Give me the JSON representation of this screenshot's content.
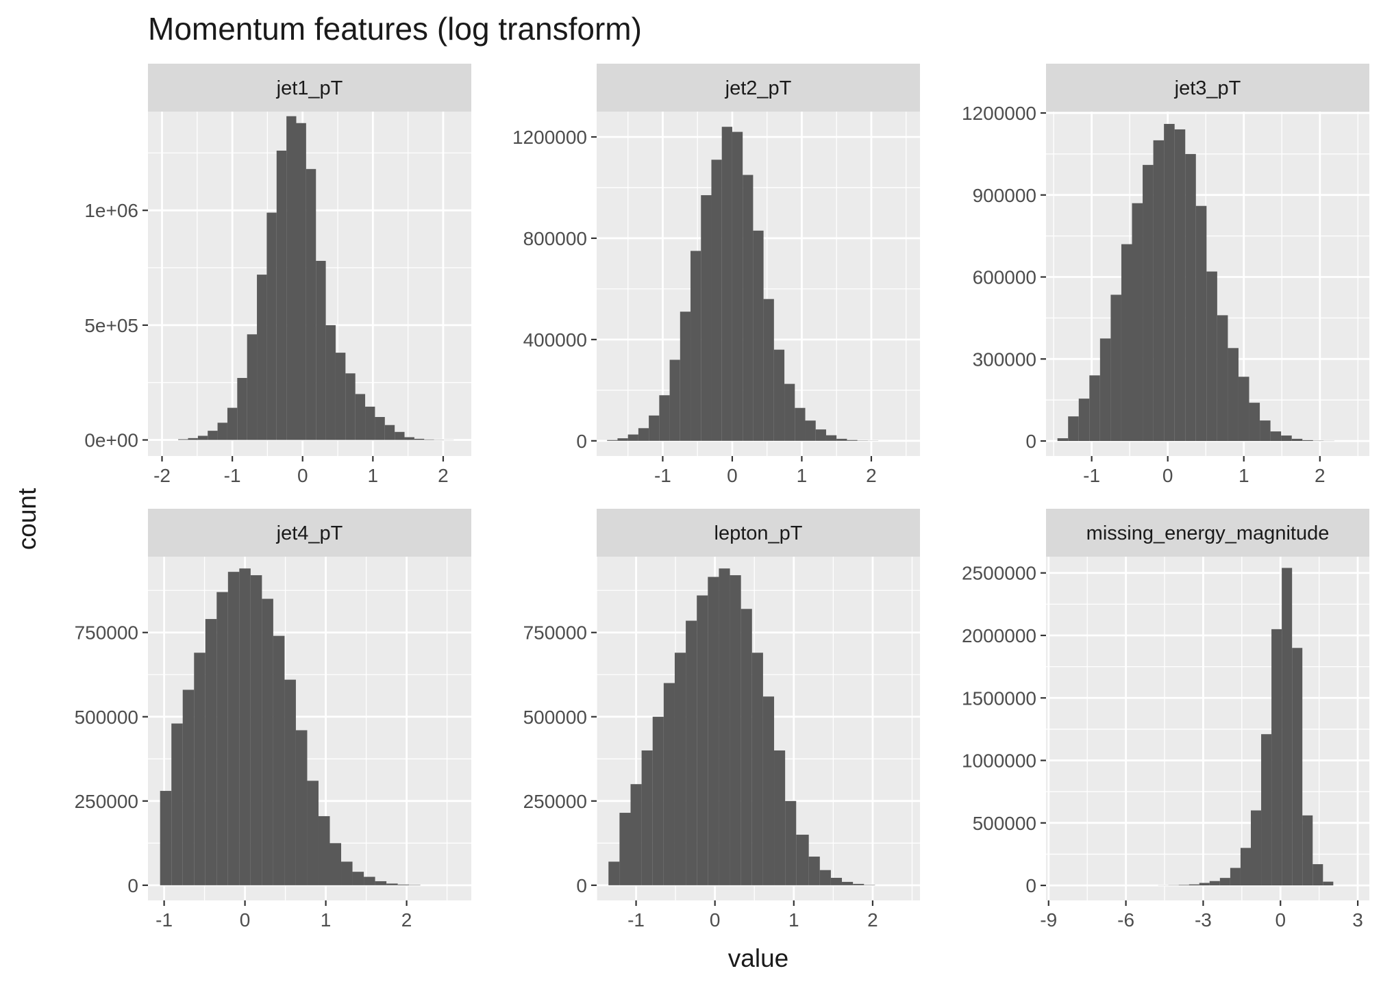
{
  "title": "Momentum features (log transform)",
  "xlabel": "value",
  "ylabel": "count",
  "colors": {
    "panel_bg": "#ebebeb",
    "strip_bg": "#d9d9d9",
    "grid": "#ffffff",
    "bar": "#595959",
    "tick": "#333333"
  },
  "chart_data": [
    {
      "type": "bar",
      "panel": "jet1_pT",
      "xlim": [
        -2.2,
        2.4
      ],
      "ylim": [
        -70000,
        1430000
      ],
      "xticks": [
        -2,
        -1,
        0,
        1,
        2
      ],
      "yticks": [
        0,
        500000,
        1000000
      ],
      "ytick_labels": [
        "0e+00",
        "5e+05",
        "1e+06"
      ],
      "bin_edges": [
        -1.77,
        -1.63,
        -1.49,
        -1.35,
        -1.21,
        -1.07,
        -0.93,
        -0.79,
        -0.65,
        -0.51,
        -0.37,
        -0.23,
        -0.09,
        0.05,
        0.19,
        0.33,
        0.47,
        0.61,
        0.75,
        0.89,
        1.03,
        1.17,
        1.31,
        1.45,
        1.59,
        1.73,
        1.87,
        2.01,
        2.15
      ],
      "counts": [
        3000,
        8000,
        18000,
        40000,
        75000,
        140000,
        270000,
        460000,
        720000,
        990000,
        1260000,
        1410000,
        1380000,
        1180000,
        780000,
        500000,
        380000,
        290000,
        200000,
        145000,
        100000,
        65000,
        35000,
        12000,
        5000,
        2000,
        1000,
        500
      ]
    },
    {
      "type": "bar",
      "panel": "jet2_pT",
      "xlim": [
        -1.95,
        2.7
      ],
      "ylim": [
        -60000,
        1300000
      ],
      "xticks": [
        -1,
        0,
        1,
        2
      ],
      "yticks": [
        0,
        400000,
        800000,
        1200000
      ],
      "ytick_labels": [
        "0",
        "400000",
        "800000",
        "1200000"
      ],
      "bin_edges": [
        -1.8,
        -1.65,
        -1.5,
        -1.35,
        -1.2,
        -1.05,
        -0.9,
        -0.75,
        -0.6,
        -0.45,
        -0.3,
        -0.15,
        0.0,
        0.15,
        0.3,
        0.45,
        0.6,
        0.75,
        0.9,
        1.05,
        1.2,
        1.35,
        1.5,
        1.65,
        1.8,
        1.95,
        2.1,
        2.25
      ],
      "counts": [
        3000,
        10000,
        25000,
        50000,
        100000,
        180000,
        320000,
        510000,
        750000,
        970000,
        1110000,
        1240000,
        1220000,
        1050000,
        830000,
        560000,
        360000,
        225000,
        130000,
        80000,
        45000,
        22000,
        8000,
        3000,
        1000,
        500,
        0
      ]
    },
    {
      "type": "bar",
      "panel": "jet3_pT",
      "xlim": [
        -1.6,
        2.65
      ],
      "ylim": [
        -55000,
        1205000
      ],
      "xticks": [
        -1,
        0,
        1,
        2
      ],
      "yticks": [
        0,
        300000,
        600000,
        900000,
        1200000
      ],
      "ytick_labels": [
        "0",
        "300000",
        "600000",
        "900000",
        "1200000"
      ],
      "bin_edges": [
        -1.45,
        -1.31,
        -1.17,
        -1.03,
        -0.89,
        -0.75,
        -0.61,
        -0.47,
        -0.33,
        -0.19,
        -0.05,
        0.09,
        0.23,
        0.37,
        0.51,
        0.65,
        0.79,
        0.93,
        1.07,
        1.21,
        1.35,
        1.49,
        1.63,
        1.77,
        1.91,
        2.05,
        2.19,
        2.33
      ],
      "counts": [
        10000,
        90000,
        155000,
        240000,
        375000,
        535000,
        720000,
        870000,
        1010000,
        1100000,
        1160000,
        1140000,
        1050000,
        860000,
        620000,
        460000,
        340000,
        235000,
        140000,
        75000,
        35000,
        20000,
        8000,
        3000,
        1000,
        500,
        0
      ]
    },
    {
      "type": "bar",
      "panel": "jet4_pT",
      "xlim": [
        -1.2,
        2.8
      ],
      "ylim": [
        -45000,
        975000
      ],
      "xticks": [
        -1,
        0,
        1,
        2
      ],
      "yticks": [
        0,
        250000,
        500000,
        750000
      ],
      "ytick_labels": [
        "0",
        "250000",
        "500000",
        "750000"
      ],
      "bin_edges": [
        -1.05,
        -0.91,
        -0.77,
        -0.63,
        -0.49,
        -0.35,
        -0.21,
        -0.07,
        0.07,
        0.21,
        0.35,
        0.49,
        0.63,
        0.77,
        0.91,
        1.05,
        1.19,
        1.33,
        1.47,
        1.61,
        1.75,
        1.89,
        2.03,
        2.17
      ],
      "counts": [
        280000,
        480000,
        580000,
        690000,
        790000,
        870000,
        930000,
        940000,
        920000,
        850000,
        740000,
        610000,
        460000,
        310000,
        205000,
        125000,
        70000,
        40000,
        25000,
        12000,
        5000,
        2000,
        1000
      ]
    },
    {
      "type": "bar",
      "panel": "lepton_pT",
      "xlim": [
        -1.5,
        2.6
      ],
      "ylim": [
        -45000,
        975000
      ],
      "xticks": [
        -1,
        0,
        1,
        2
      ],
      "yticks": [
        0,
        250000,
        500000,
        750000
      ],
      "ytick_labels": [
        "0",
        "250000",
        "500000",
        "750000"
      ],
      "bin_edges": [
        -1.35,
        -1.21,
        -1.07,
        -0.93,
        -0.79,
        -0.65,
        -0.51,
        -0.37,
        -0.23,
        -0.09,
        0.05,
        0.19,
        0.33,
        0.47,
        0.61,
        0.75,
        0.89,
        1.03,
        1.19,
        1.33,
        1.47,
        1.61,
        1.75,
        1.89,
        2.03
      ],
      "counts": [
        70000,
        215000,
        300000,
        400000,
        500000,
        600000,
        690000,
        785000,
        860000,
        915000,
        940000,
        920000,
        820000,
        690000,
        560000,
        400000,
        250000,
        150000,
        85000,
        45000,
        22000,
        10000,
        4000,
        1000
      ]
    },
    {
      "type": "bar",
      "panel": "missing_energy_magnitude",
      "xlim": [
        -9.1,
        3.45
      ],
      "ylim": [
        -120000,
        2630000
      ],
      "xticks": [
        -9,
        -6,
        -3,
        0,
        3
      ],
      "yticks": [
        0,
        500000,
        1000000,
        1500000,
        2000000,
        2500000
      ],
      "ytick_labels": [
        "0",
        "500000",
        "1000000",
        "1500000",
        "2000000",
        "2500000"
      ],
      "bin_edges": [
        -4.75,
        -4.35,
        -3.95,
        -3.55,
        -3.15,
        -2.75,
        -2.35,
        -1.95,
        -1.55,
        -1.15,
        -0.75,
        -0.35,
        0.05,
        0.45,
        0.85,
        1.25,
        1.65,
        2.05
      ],
      "counts": [
        1000,
        2000,
        4000,
        8000,
        20000,
        35000,
        60000,
        140000,
        300000,
        600000,
        1210000,
        2050000,
        2540000,
        1900000,
        560000,
        170000,
        30000
      ]
    }
  ]
}
